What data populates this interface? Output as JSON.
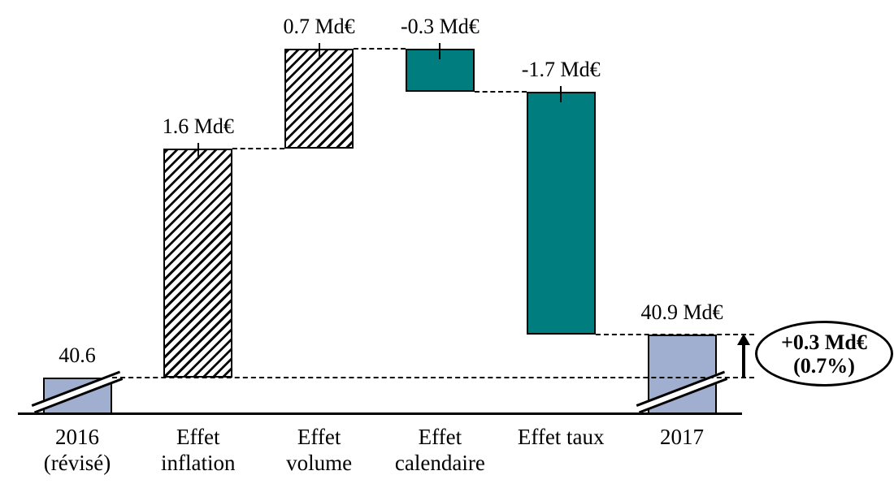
{
  "chart_data": {
    "type": "waterfall",
    "title": "",
    "xlabel": "",
    "ylabel": "",
    "unit": "Md€",
    "axis_break_on_totals": true,
    "grid": false,
    "legend": false,
    "bars": [
      {
        "category": "2016\n(révisé)",
        "label": "40.6",
        "value": 40.6,
        "role": "total",
        "style": "solid"
      },
      {
        "category": "Effet\ninflation",
        "label": "1.6 Md€",
        "value": 1.6,
        "role": "delta",
        "style": "hatch"
      },
      {
        "category": "Effet\nvolume",
        "label": "0.7 Md€",
        "value": 0.7,
        "role": "delta",
        "style": "hatch"
      },
      {
        "category": "Effet\ncalendaire",
        "label": "-0.3 Md€",
        "value": -0.3,
        "role": "delta",
        "style": "solid-negative"
      },
      {
        "category": "Effet taux",
        "label": "-1.7 Md€",
        "value": -1.7,
        "role": "delta",
        "style": "solid-negative"
      },
      {
        "category": "2017",
        "label": "40.9 Md€",
        "value": 40.9,
        "role": "total",
        "style": "solid"
      }
    ],
    "levels": [
      40.6,
      42.2,
      42.9,
      42.6,
      40.9
    ],
    "annotation": {
      "line1": "+0.3 Md€",
      "line2": "(0.7%)",
      "arrow_direction": "up"
    },
    "colors": {
      "total_fill": "#a0aed0",
      "negative_fill": "#007d7e",
      "hatch_line": "#0a0a0a",
      "border": "#000000",
      "text": "#000000"
    }
  }
}
